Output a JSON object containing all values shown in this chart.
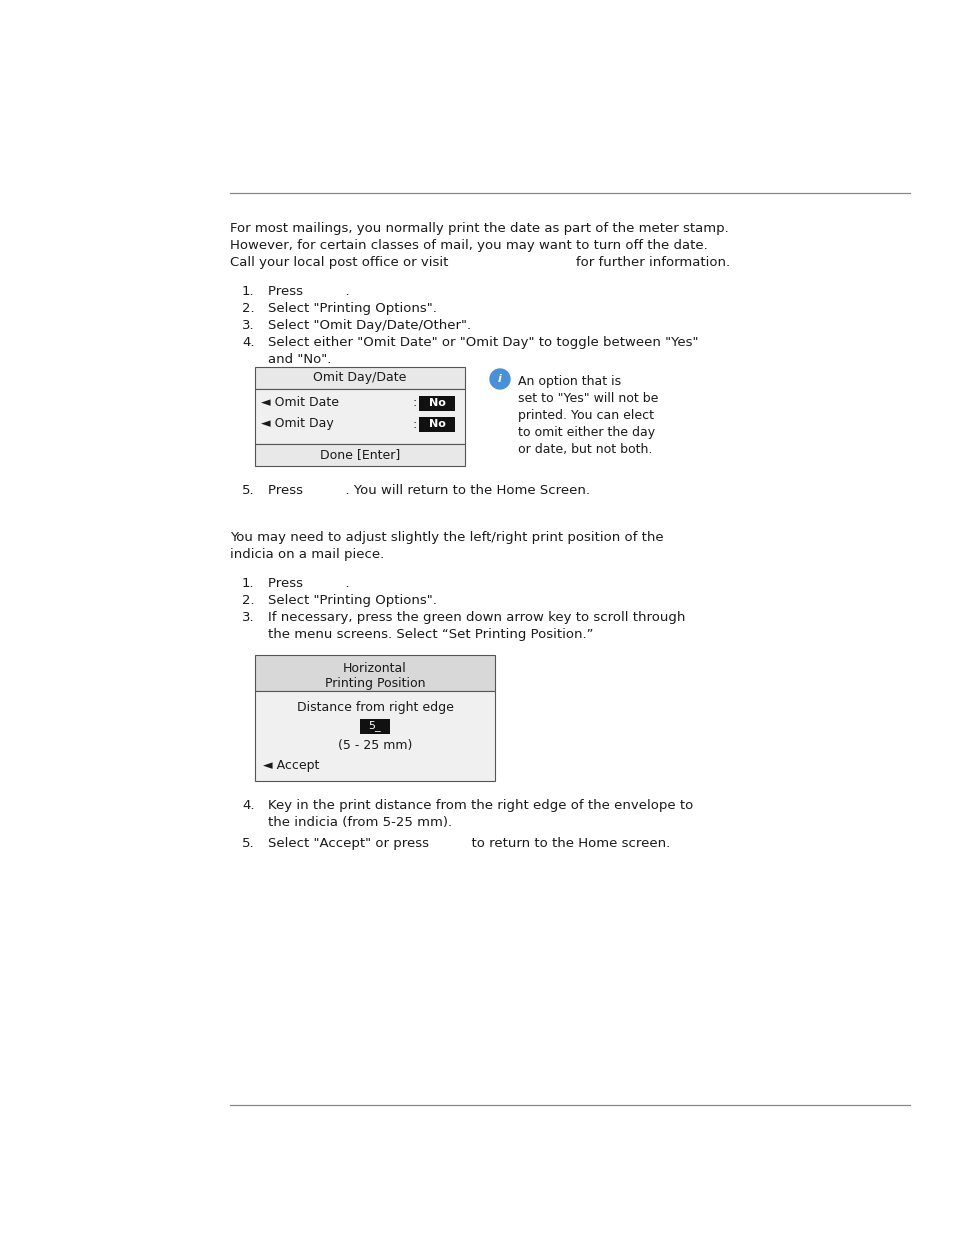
{
  "bg_color": "#ffffff",
  "text_color": "#1a1a1a",
  "line_color": "#888888",
  "section1_intro_lines": [
    "For most mailings, you normally print the date as part of the meter stamp.",
    "However, for certain classes of mail, you may want to turn off the date.",
    "Call your local post office or visit                              for further information."
  ],
  "section1_steps": [
    "Press          .",
    "Select \"Printing Options\".",
    "Select \"Omit Day/Date/Other\".",
    "Select either \"Omit Date\" or \"Omit Day\" to toggle between \"Yes\""
  ],
  "step4_line2": "and \"No\".",
  "section1_step5": "Press          . You will return to the Home Screen.",
  "omit_table_header": "Omit Day/Date",
  "omit_row1_label": "◄ Omit Date",
  "omit_row2_label": "◄ Omit Day",
  "omit_done": "Done [Enter]",
  "no_label": "No",
  "info_text_lines": [
    "An option that is",
    "set to \"Yes\" will not be",
    "printed. You can elect",
    "to omit either the day",
    "or date, but not both."
  ],
  "section2_intro_lines": [
    "You may need to adjust slightly the left/right print position of the",
    "indicia on a mail piece."
  ],
  "section2_steps": [
    "Press          .",
    "Select \"Printing Options\".",
    "If necessary, press the green down arrow key to scroll through"
  ],
  "step3_line2": "the menu screens. Select “Set Printing Position.”",
  "section2_step4_lines": [
    "Key in the print distance from the right edge of the envelope to",
    "the indicia (from 5-25 mm)."
  ],
  "section2_step5": "Select \"Accept\" or press          to return to the Home screen.",
  "horiz_table_header1": "Horizontal",
  "horiz_table_header2": "Printing Position",
  "horiz_dist_label": "Distance from right edge",
  "horiz_value": "5_",
  "horiz_range": "(5 - 25 mm)",
  "horiz_accept": "◄ Accept"
}
